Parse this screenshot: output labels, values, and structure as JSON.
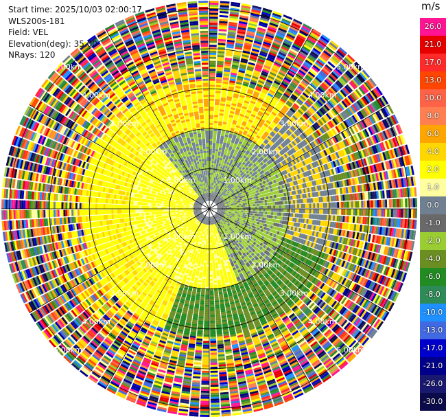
{
  "header": {
    "start_time": "Start time: 2025/10/03 02:00:17",
    "instrument": "WLS200s-181",
    "field": "Field: VEL",
    "elevation": "Elevation(deg): 35.00",
    "nrays": "NRays: 120"
  },
  "chart_data": {
    "type": "heatmap",
    "projection": "polar-ppi",
    "nrays": 120,
    "range_ring_labels": [
      "1.00km",
      "2.00km",
      "3.00km",
      "4.00km",
      "5.00km"
    ],
    "range_rings_km": [
      1,
      2,
      3,
      4,
      5
    ],
    "max_range_km": 5.2,
    "colorbar": {
      "unit": "m/s",
      "ticks": [
        "26.0",
        "21.0",
        "17.0",
        "13.0",
        "10.0",
        "8.0",
        "6.0",
        "4.0",
        "2.0",
        "1.0",
        "0.0",
        "-1.0",
        "-2.0",
        "-4.0",
        "-6.0",
        "-8.0",
        "-10.0",
        "-13.0",
        "-17.0",
        "-21.0",
        "-26.0",
        "-30.0"
      ],
      "colors": [
        "#ff1493",
        "#e60000",
        "#ff2a2a",
        "#ff4500",
        "#ff6347",
        "#ff7f50",
        "#ffa500",
        "#ffd700",
        "#ffff00",
        "#ffffa0",
        "#708090",
        "#696969",
        "#9acd32",
        "#6b8e23",
        "#228b22",
        "#2e8b57",
        "#1e90ff",
        "#4169e1",
        "#0000cd",
        "#00008b",
        "#191970",
        "#0b0b4a"
      ]
    }
  }
}
